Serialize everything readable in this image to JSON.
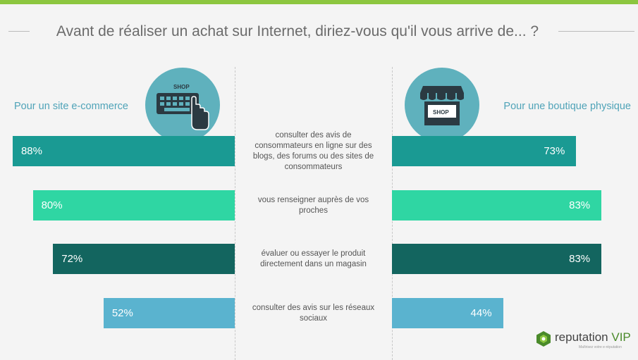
{
  "title": "Avant de réaliser un achat sur Internet, diriez-vous qu'il vous arrive de... ?",
  "left_label": "Pour un site e-commerce",
  "right_label": "Pour une boutique physique",
  "left_icon": {
    "name": "keyboard-shop-icon",
    "text": "SHOP"
  },
  "right_icon": {
    "name": "storefront-shop-icon",
    "text": "SHOP"
  },
  "logo": {
    "word": "reputation",
    "vip": "VIP",
    "tagline": "Maîtrisez votre e-réputation"
  },
  "colors": {
    "accent_top": "#8cc63f",
    "badge": "#5fb1bd",
    "label": "#4fa3b8"
  },
  "chart_data": {
    "type": "bar",
    "categories": [
      "consulter des avis de consommateurs en ligne sur des blogs, des forums ou des sites de consommateurs",
      "vous renseigner auprès de vos proches",
      "évaluer ou essayer le produit directement dans un magasin",
      "consulter des avis sur les réseaux sociaux"
    ],
    "category_lines": [
      [
        "consulter des avis de",
        "consommateurs en ligne sur des",
        "blogs, des forums ou des sites de",
        "consommateurs"
      ],
      [
        "vous renseigner auprès de vos",
        "proches"
      ],
      [
        "évaluer ou essayer le produit",
        "directement dans un magasin"
      ],
      [
        "consulter des avis sur les réseaux",
        "sociaux"
      ]
    ],
    "series": [
      {
        "name": "Pour un site e-commerce",
        "side": "left",
        "values": [
          88,
          80,
          72,
          52
        ],
        "labels": [
          "88%",
          "80%",
          "72%",
          "52%"
        ]
      },
      {
        "name": "Pour une boutique physique",
        "side": "right",
        "values": [
          73,
          83,
          83,
          44
        ],
        "labels": [
          "73%",
          "83%",
          "83%",
          "44%"
        ]
      }
    ],
    "row_colors": [
      "#1a9a93",
      "#2fd6a3",
      "#13655f",
      "#5ab3cf"
    ],
    "xlim": [
      0,
      100
    ],
    "grid": false,
    "legend": "none"
  }
}
